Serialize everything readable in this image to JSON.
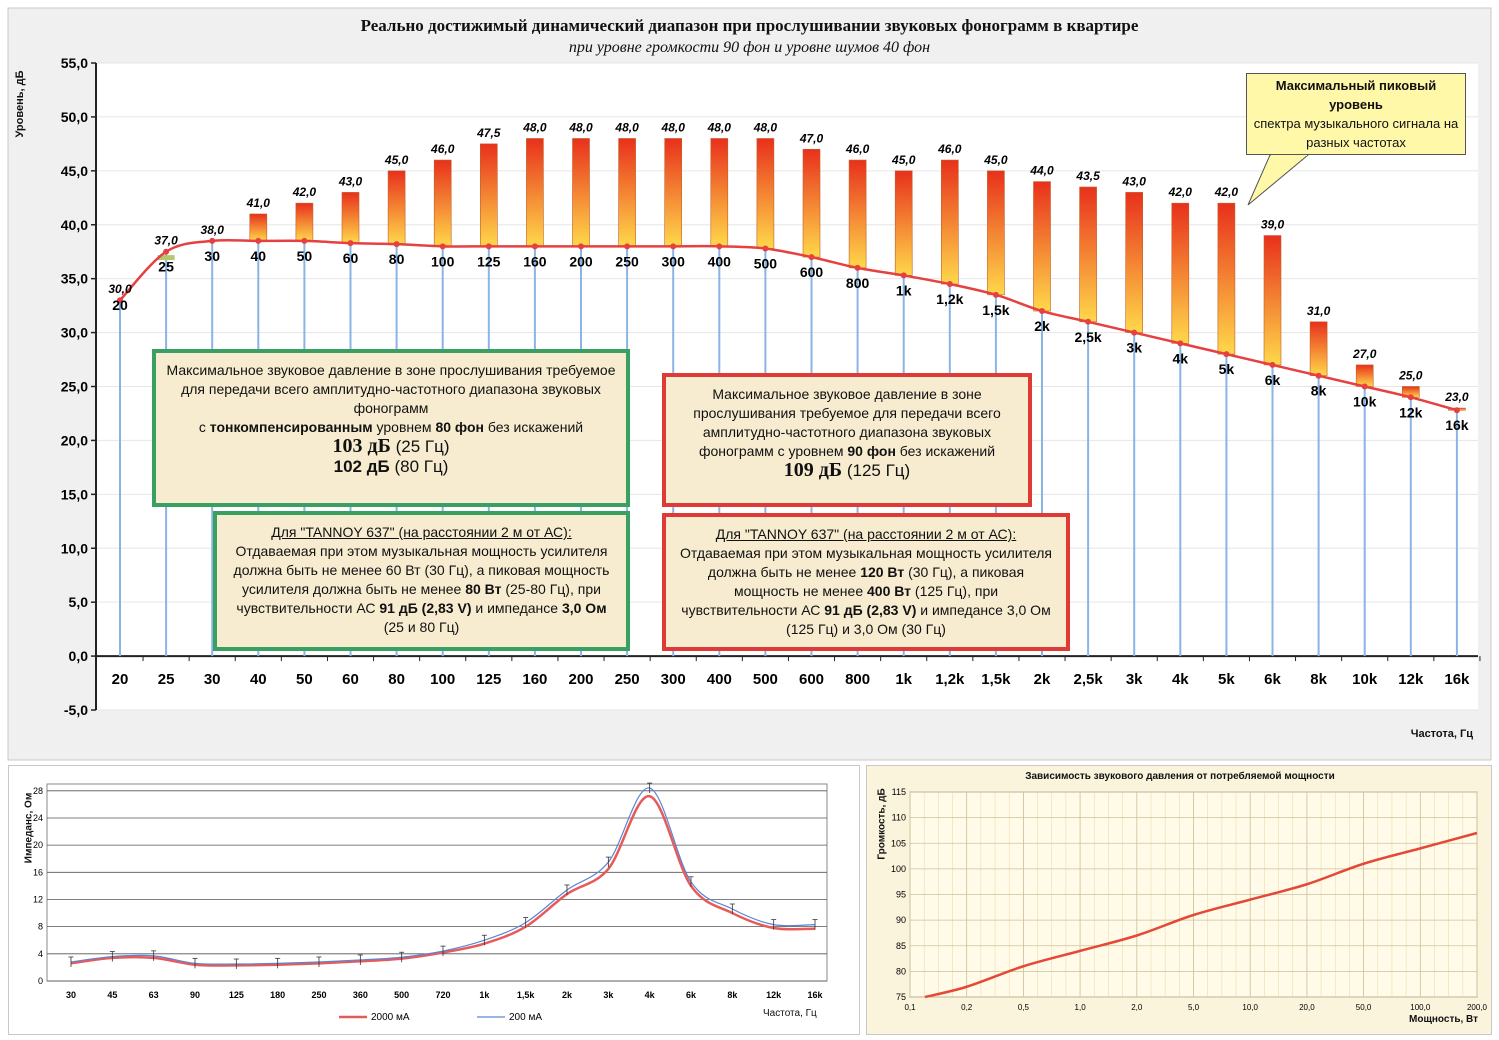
{
  "main": {
    "title": "Реально достижимый динамический диапазон при прослушивании звуковых фонограмм в квартире",
    "subtitle": "при уровне громкости 90 фон и уровне шумов 40 фон",
    "ylabel": "Уровень, дБ",
    "xlabel": "Частота, Гц",
    "callout": {
      "line1": "Максимальный пиковый уровень",
      "line2": "спектра музыкального сигнала на разных частотах"
    },
    "note_green": {
      "line1": "Максимальное звуковое давление в зоне прослушивания требуемое для передачи всего амплитудно-частотного диапазона звуковых фонограмм",
      "line2_pre": "с ",
      "line2_bold1": "тонкомпенсированным",
      "line2_mid": " уровнем ",
      "line2_bold2": "80 фон",
      "line2_post": " без искажений",
      "big1": "103 дБ",
      "big1_unit": " (25 Гц)",
      "big2": "102 дБ",
      "big2_unit": " (80 Гц)"
    },
    "note_red": {
      "line1": "Максимальное звуковое давление в зоне прослушивания требуемое для передачи всего амплитудно-частотного диапазона звуковых фонограмм с уровнем ",
      "line1_bold": "90 фон",
      "line1_post": " без искажений",
      "big": "109 дБ",
      "big_unit": " (125 Гц)"
    },
    "tannoy_green": {
      "head": "Для \"TANNOY 637\" (на расстоянии 2 м от АС):",
      "t1": "Отдаваемая при этом музыкальная мощность усилителя должна быть не менее 60 Вт (30 Гц), а пиковая мощность усилителя должна быть не менее ",
      "b1": "80 Вт",
      "t2": " (25-80 Гц), при чувствительности АС ",
      "b2": "91 дБ (2,83 V)",
      "t3": " и импедансе ",
      "b3": "3,0 Ом",
      "t4": " (25 и 80 Гц)"
    },
    "tannoy_red": {
      "head": "Для \"TANNOY 637\" (на расстоянии 2 м от АС):",
      "t1": "Отдаваемая при этом музыкальная мощность усилителя должна быть не менее ",
      "b1": "120 Вт",
      "t2": " (30 Гц), а пиковая мощность не менее ",
      "b2": "400 Вт",
      "t3": " (125 Гц), при чувствительности АС ",
      "b3": "91 дБ (2,83 V)",
      "t4": " и импедансе 3,0 Ом (125 Гц) и 3,0 Ом (30 Гц)"
    }
  },
  "colors": {
    "bar_top": "#e8301c",
    "bar_bottom": "#ffd84a",
    "curve": "#e64040",
    "drop_line": "#8ab4e6",
    "plot_bg": "#ffffff",
    "panel_bg": "#f0f0f0",
    "green_border": "#3aa061",
    "red_border": "#e03a36",
    "note_bg": "#f7ecd0"
  },
  "chart_data": [
    {
      "type": "bar",
      "categories": [
        "20",
        "25",
        "30",
        "40",
        "50",
        "60",
        "80",
        "100",
        "125",
        "160",
        "200",
        "250",
        "300",
        "400",
        "500",
        "600",
        "800",
        "1k",
        "1,2k",
        "1,5k",
        "2k",
        "2,5k",
        "3k",
        "4k",
        "5k",
        "6k",
        "8k",
        "10k",
        "12k",
        "16k"
      ],
      "series": [
        {
          "name": "",
          "values": [
            30.0,
            37.0,
            38.0,
            41.0,
            42.0,
            43.0,
            45.0,
            46.0,
            47.5,
            48.0,
            48.0,
            48.0,
            48.0,
            48.0,
            48.0,
            47.0,
            46.0,
            45.0,
            46.0,
            45.0,
            44.0,
            43.5,
            43.0,
            42.0,
            42.0,
            39.0,
            31.0,
            27.0,
            25.0,
            23.0
          ]
        },
        {
          "name": "",
          "type": "line",
          "values": [
            33.0,
            37.5,
            38.5,
            38.5,
            38.5,
            38.3,
            38.2,
            38.0,
            38.0,
            38.0,
            38.0,
            38.0,
            38.0,
            38.0,
            37.8,
            37.0,
            36.0,
            35.3,
            34.5,
            33.5,
            32.0,
            31.0,
            30.0,
            29.0,
            28.0,
            27.0,
            26.0,
            25.0,
            24.0,
            22.8
          ]
        }
      ],
      "value_labels": [
        "30,0",
        "37,0",
        "38,0",
        "41,0",
        "42,0",
        "43,0",
        "45,0",
        "46,0",
        "47,5",
        "48,0",
        "48,0",
        "48,0",
        "48,0",
        "48,0",
        "48,0",
        "47,0",
        "46,0",
        "45,0",
        "46,0",
        "45,0",
        "44,0",
        "43,5",
        "43,0",
        "42,0",
        "42,0",
        "39,0",
        "31,0",
        "27,0",
        "25,0",
        "23,0"
      ],
      "yticks": [
        "55,0",
        "50,0",
        "45,0",
        "40,0",
        "35,0",
        "30,0",
        "25,0",
        "20,0",
        "15,0",
        "10,0",
        "5,0",
        "0,0",
        "-5,0"
      ],
      "ylim": [
        -5,
        55
      ],
      "title": "Реально достижимый динамический диапазон при прослушивании звуковых фонограмм в квартире",
      "ylabel": "Уровень, дБ",
      "xlabel": "Частота, Гц",
      "grid": true
    },
    {
      "type": "line",
      "categories": [
        "30",
        "45",
        "63",
        "90",
        "125",
        "180",
        "250",
        "360",
        "500",
        "720",
        "1k",
        "1,5k",
        "2k",
        "3k",
        "4k",
        "6k",
        "8k",
        "12k",
        "16k"
      ],
      "series": [
        {
          "name": "2000 мА",
          "values": [
            2.6,
            3.4,
            3.4,
            2.4,
            2.3,
            2.4,
            2.6,
            2.9,
            3.3,
            4.2,
            5.5,
            8.0,
            12.8,
            16.5,
            27.2,
            14.0,
            10.0,
            7.8,
            7.7
          ]
        },
        {
          "name": "200 мА",
          "values": [
            2.8,
            3.6,
            3.7,
            2.6,
            2.5,
            2.6,
            2.8,
            3.1,
            3.5,
            4.4,
            6.0,
            8.6,
            13.4,
            17.5,
            28.4,
            14.6,
            10.6,
            8.3,
            8.3
          ]
        }
      ],
      "yticks": [
        "28",
        "24",
        "20",
        "16",
        "12",
        "8",
        "4",
        "0"
      ],
      "ylim": [
        0,
        29
      ],
      "ylabel": "Импеданс, Ом",
      "xlabel": "Частота, Гц",
      "legend": "bottom",
      "grid": true
    },
    {
      "type": "line",
      "title": "Зависимость звукового давления от потребляемой мощности",
      "xticks": [
        "0,1",
        "0,2",
        "0,5",
        "1,0",
        "2,0",
        "5,0",
        "10,0",
        "20,0",
        "50,0",
        "100,0",
        "200,0"
      ],
      "x": [
        0.12,
        0.2,
        0.5,
        1.0,
        2.0,
        5.0,
        10.0,
        20.0,
        50.0,
        100.0,
        200.0
      ],
      "series": [
        {
          "name": "",
          "values": [
            75.0,
            77.0,
            81.0,
            84.0,
            87.0,
            91.0,
            94.0,
            97.0,
            101.0,
            104.0,
            107.0
          ]
        }
      ],
      "yticks": [
        "115",
        "110",
        "105",
        "100",
        "95",
        "90",
        "85",
        "80",
        "75"
      ],
      "ylim": [
        75,
        115
      ],
      "xscale": "log",
      "ylabel": "Громкость, дБ",
      "xlabel": "Мощность, Вт",
      "grid": true
    }
  ]
}
